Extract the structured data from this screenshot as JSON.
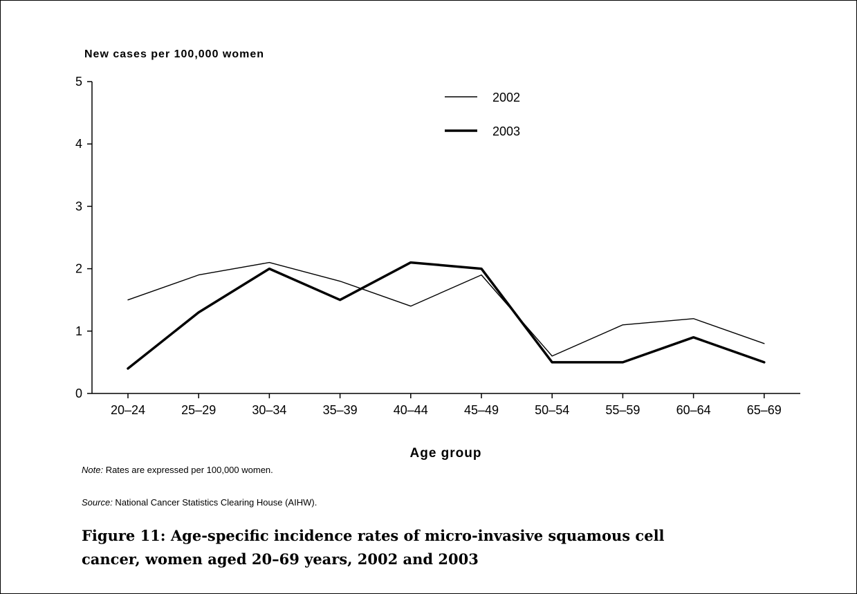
{
  "chart_data": {
    "type": "line",
    "ylabel": "New cases per 100,000 women",
    "xlabel": "Age group",
    "ylim": [
      0,
      5
    ],
    "yticks": [
      "0",
      "1",
      "2",
      "3",
      "4",
      "5"
    ],
    "categories": [
      "20–24",
      "25–29",
      "30–34",
      "35–39",
      "40–44",
      "45–49",
      "50–54",
      "55–59",
      "60–64",
      "65–69"
    ],
    "series": [
      {
        "name": "2002",
        "values": [
          1.5,
          1.9,
          2.1,
          1.8,
          1.4,
          1.9,
          0.6,
          1.1,
          1.2,
          0.8
        ],
        "style": "thin"
      },
      {
        "name": "2003",
        "values": [
          0.4,
          1.3,
          2.0,
          1.5,
          2.1,
          2.0,
          0.5,
          0.5,
          0.9,
          0.5
        ],
        "style": "thick"
      }
    ],
    "legend_position": "top-right",
    "grid": false,
    "line_color": "#000000"
  },
  "note": {
    "label": "Note:",
    "text": " Rates are expressed per 100,000 women."
  },
  "source": {
    "label": "Source:",
    "text": " National Cancer Statistics Clearing House (AIHW)."
  },
  "caption": "Figure 11: Age-specific incidence rates of micro-invasive squamous cell cancer, women aged 20–69 years, 2002 and 2003"
}
